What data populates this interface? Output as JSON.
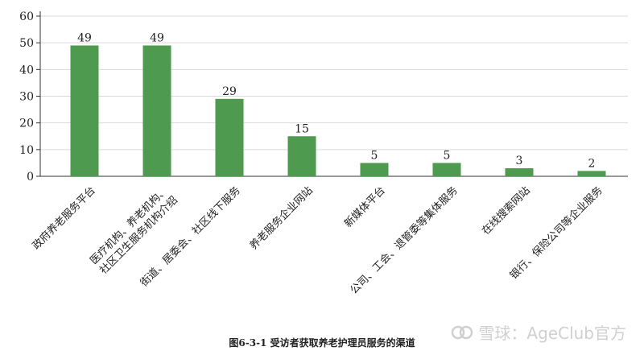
{
  "chart_data": {
    "type": "bar",
    "categories": [
      "政府养老服务平台",
      "医疗机构、养老机构、\n社区卫生服务机构介绍",
      "街道、居委会、社区线下服务",
      "养老服务企业网站",
      "新媒体平台",
      "公司、工会、退管委等集体服务",
      "在线搜索网站",
      "银行、保险公司等企业服务"
    ],
    "values": [
      49,
      49,
      29,
      15,
      5,
      5,
      3,
      2
    ],
    "ylim": [
      0,
      60
    ],
    "yticks": [
      0,
      10,
      20,
      30,
      40,
      50,
      60
    ],
    "bar_color": "#4e9a4f",
    "grid": true
  },
  "caption": "图6-3-1 受访者获取养老护理员服务的渠道",
  "watermark": "雪球：AgeClub官方"
}
